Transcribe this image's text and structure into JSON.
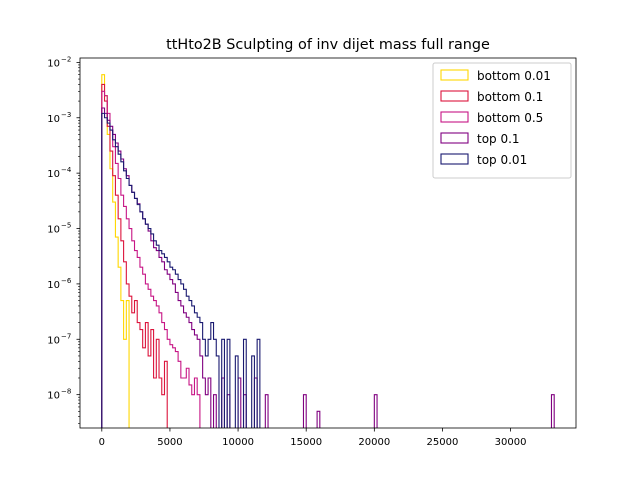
{
  "chart_data": {
    "type": "histogram-step",
    "title": "ttHto2B Sculpting of inv dijet mass full range",
    "xlabel": "",
    "ylabel": "",
    "xlim": [
      -1600,
      34800
    ],
    "ylim": [
      2.5e-09,
      0.012
    ],
    "yscale": "log",
    "grid": false,
    "legend_position": "top-right",
    "x_ticks": [
      {
        "value": 0,
        "label": "0"
      },
      {
        "value": 5000,
        "label": "5000"
      },
      {
        "value": 10000,
        "label": "10000"
      },
      {
        "value": 15000,
        "label": "15000"
      },
      {
        "value": 20000,
        "label": "20000"
      },
      {
        "value": 25000,
        "label": "25000"
      },
      {
        "value": 30000,
        "label": "30000"
      }
    ],
    "y_ticks": [
      {
        "value": 1e-08,
        "base": "10",
        "exp": "−8"
      },
      {
        "value": 1e-07,
        "base": "10",
        "exp": "−7"
      },
      {
        "value": 1e-06,
        "base": "10",
        "exp": "−6"
      },
      {
        "value": 1e-05,
        "base": "10",
        "exp": "−5"
      },
      {
        "value": 0.0001,
        "base": "10",
        "exp": "−4"
      },
      {
        "value": 0.001,
        "base": "10",
        "exp": "−3"
      },
      {
        "value": 0.01,
        "base": "10",
        "exp": "−2"
      }
    ],
    "series": [
      {
        "name": "bottom 0.01",
        "color": "#ffd700",
        "points": [
          [
            0,
            0.006
          ],
          [
            200,
            0.0025
          ],
          [
            400,
            0.0005
          ],
          [
            600,
            0.00012
          ],
          [
            800,
            3e-05
          ],
          [
            1000,
            7e-06
          ],
          [
            1200,
            2e-06
          ],
          [
            1400,
            5e-07
          ],
          [
            1600,
            1e-07
          ],
          [
            1800,
            5e-07
          ]
        ]
      },
      {
        "name": "bottom 0.1",
        "color": "#dc143c",
        "points": [
          [
            0,
            0.004
          ],
          [
            200,
            0.002
          ],
          [
            400,
            0.0007
          ],
          [
            600,
            0.00025
          ],
          [
            800,
            9e-05
          ],
          [
            1000,
            4e-05
          ],
          [
            1200,
            1.5e-05
          ],
          [
            1400,
            6e-06
          ],
          [
            1600,
            2.5e-06
          ],
          [
            1800,
            1e-06
          ],
          [
            2000,
            6e-07
          ],
          [
            2200,
            3e-07
          ],
          [
            2400,
            5e-07
          ],
          [
            2600,
            2e-07
          ],
          [
            2800,
            1.5e-07
          ],
          [
            3000,
            7e-08
          ],
          [
            3200,
            2e-07
          ],
          [
            3400,
            5e-08
          ],
          [
            3600,
            1.5e-07
          ],
          [
            3800,
            2e-08
          ],
          [
            4000,
            1e-07
          ],
          [
            4200,
            2e-08
          ],
          [
            4400,
            1e-08
          ],
          [
            4600,
            4e-08
          ]
        ]
      },
      {
        "name": "bottom 0.5",
        "color": "#c71585",
        "points": [
          [
            0,
            0.003
          ],
          [
            200,
            0.0025
          ],
          [
            400,
            0.0012
          ],
          [
            600,
            0.0006
          ],
          [
            800,
            0.0003
          ],
          [
            1000,
            0.00015
          ],
          [
            1200,
            8e-05
          ],
          [
            1400,
            4e-05
          ],
          [
            1600,
            2.5e-05
          ],
          [
            1800,
            1.5e-05
          ],
          [
            2000,
            1e-05
          ],
          [
            2200,
            6e-06
          ],
          [
            2400,
            4e-06
          ],
          [
            2600,
            3e-06
          ],
          [
            2800,
            2e-06
          ],
          [
            3000,
            1.5e-06
          ],
          [
            3200,
            1e-06
          ],
          [
            3400,
            8e-07
          ],
          [
            3600,
            6e-07
          ],
          [
            3800,
            5e-07
          ],
          [
            4000,
            4e-07
          ],
          [
            4200,
            3e-07
          ],
          [
            4400,
            2e-07
          ],
          [
            4600,
            1.5e-07
          ],
          [
            4800,
            1e-07
          ],
          [
            5000,
            8e-08
          ],
          [
            5200,
            7e-08
          ],
          [
            5400,
            6e-08
          ],
          [
            5600,
            4e-08
          ],
          [
            5800,
            2e-08
          ],
          [
            6000,
            2e-08
          ],
          [
            6200,
            3e-08
          ],
          [
            6400,
            1.5e-08
          ],
          [
            6600,
            1e-08
          ],
          [
            6800,
            2e-08
          ],
          [
            7000,
            1e-08
          ]
        ]
      },
      {
        "name": "top 0.1",
        "color": "#800080",
        "points": [
          [
            0,
            0.0015
          ],
          [
            200,
            0.0012
          ],
          [
            400,
            0.0009
          ],
          [
            600,
            0.0007
          ],
          [
            800,
            0.0005
          ],
          [
            1000,
            0.00035
          ],
          [
            1200,
            0.00025
          ],
          [
            1400,
            0.00018
          ],
          [
            1600,
            0.00012
          ],
          [
            1800,
            9e-05
          ],
          [
            2000,
            6e-05
          ],
          [
            2200,
            4.5e-05
          ],
          [
            2400,
            3.5e-05
          ],
          [
            2600,
            2.8e-05
          ],
          [
            2800,
            2e-05
          ],
          [
            3000,
            1.5e-05
          ],
          [
            3200,
            1.2e-05
          ],
          [
            3400,
            9e-06
          ],
          [
            3600,
            6e-06
          ],
          [
            3800,
            4.5e-06
          ],
          [
            4000,
            4e-06
          ],
          [
            4200,
            3e-06
          ],
          [
            4400,
            2.5e-06
          ],
          [
            4600,
            1.8e-06
          ],
          [
            4800,
            1.5e-06
          ],
          [
            5000,
            1.2e-06
          ],
          [
            5200,
            1e-06
          ],
          [
            5400,
            7e-07
          ],
          [
            5600,
            5e-07
          ],
          [
            5800,
            4e-07
          ],
          [
            6000,
            3e-07
          ],
          [
            6200,
            2.5e-07
          ],
          [
            6400,
            2e-07
          ],
          [
            6600,
            1.5e-07
          ],
          [
            6800,
            1.2e-07
          ],
          [
            7000,
            1e-07
          ],
          [
            7200,
            5e-08
          ],
          [
            7400,
            2e-08
          ],
          [
            7600,
            1e-08
          ],
          [
            7800,
            2e-08
          ],
          [
            8200,
            1e-08
          ],
          [
            8800,
            2e-08
          ],
          [
            9200,
            1e-08
          ],
          [
            10000,
            2e-08
          ],
          [
            10400,
            1e-08
          ],
          [
            11200,
            2e-08
          ],
          [
            12000,
            1e-08
          ],
          [
            14800,
            1e-08
          ],
          [
            15800,
            5e-09
          ],
          [
            20000,
            1e-08
          ],
          [
            33000,
            1e-08
          ]
        ]
      },
      {
        "name": "top 0.01",
        "color": "#191970",
        "points": [
          [
            0,
            0.0012
          ],
          [
            200,
            0.001
          ],
          [
            400,
            0.0008
          ],
          [
            600,
            0.0006
          ],
          [
            800,
            0.0004
          ],
          [
            1000,
            0.0003
          ],
          [
            1200,
            0.00022
          ],
          [
            1400,
            0.00016
          ],
          [
            1600,
            0.00011
          ],
          [
            1800,
            8e-05
          ],
          [
            2000,
            6e-05
          ],
          [
            2200,
            4.5e-05
          ],
          [
            2400,
            3.5e-05
          ],
          [
            2600,
            2.7e-05
          ],
          [
            2800,
            2e-05
          ],
          [
            3000,
            1.5e-05
          ],
          [
            3200,
            1.2e-05
          ],
          [
            3400,
            1e-05
          ],
          [
            3600,
            8e-06
          ],
          [
            3800,
            6e-06
          ],
          [
            4000,
            5e-06
          ],
          [
            4200,
            4e-06
          ],
          [
            4400,
            3.5e-06
          ],
          [
            4600,
            3e-06
          ],
          [
            4800,
            2.5e-06
          ],
          [
            5000,
            2e-06
          ],
          [
            5200,
            1.8e-06
          ],
          [
            5400,
            1.5e-06
          ],
          [
            5600,
            1.2e-06
          ],
          [
            5800,
            1e-06
          ],
          [
            6000,
            8e-07
          ],
          [
            6200,
            6e-07
          ],
          [
            6400,
            5e-07
          ],
          [
            6600,
            4e-07
          ],
          [
            6800,
            3e-07
          ],
          [
            7000,
            2.5e-07
          ],
          [
            7200,
            2e-07
          ],
          [
            7400,
            1e-07
          ],
          [
            7600,
            5e-08
          ],
          [
            7800,
            1e-07
          ],
          [
            8000,
            2e-07
          ],
          [
            8200,
            1e-07
          ],
          [
            8400,
            5e-08
          ],
          [
            8800,
            1e-07
          ],
          [
            9200,
            1e-07
          ],
          [
            9800,
            5e-08
          ],
          [
            10400,
            1e-07
          ],
          [
            11000,
            5e-08
          ],
          [
            11400,
            1e-07
          ]
        ]
      }
    ]
  }
}
